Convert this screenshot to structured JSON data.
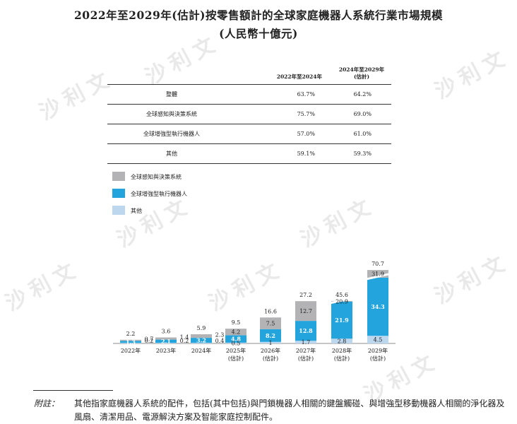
{
  "title_line1": "2022年至2029年(估計)按零售額計的全球家庭機器人系統行業市場規模",
  "title_line2": "(人民幣十億元)",
  "watermark": "沙利文",
  "cagr_table": {
    "headers": [
      "",
      "2022年至2024年",
      "2024年至2029年\n(估計)"
    ],
    "rows": [
      {
        "label": "整體",
        "v1": "63.7%",
        "v2": "64.2%"
      },
      {
        "label": "全球感知與決策系統",
        "v1": "75.7%",
        "v2": "69.0%"
      },
      {
        "label": "全球增強型執行機器人",
        "v1": "57.0%",
        "v2": "61.0%"
      },
      {
        "label": "其他",
        "v1": "59.1%",
        "v2": "59.3%"
      }
    ]
  },
  "chart_data": {
    "type": "bar",
    "stacked": true,
    "categories": [
      "2022年",
      "2023年",
      "2024年",
      "2025年\n(估計)",
      "2026年\n(估計)",
      "2027年\n(估計)",
      "2028年\n(估計)",
      "2029年\n(估計)"
    ],
    "series": [
      {
        "name": "其他",
        "color": "#bdd7ee",
        "values": [
          0.2,
          0.2,
          0.4,
          0.5,
          1.0,
          1.7,
          2.8,
          4.5
        ]
      },
      {
        "name": "全球增強型執行機器人",
        "color": "#23a4dc",
        "values": [
          1.3,
          2.1,
          3.2,
          4.8,
          8.2,
          12.8,
          21.9,
          34.3
        ]
      },
      {
        "name": "全球感知與決策系統",
        "color": "#b3b3b5",
        "values": [
          0.7,
          1.4,
          2.3,
          4.2,
          7.5,
          12.7,
          20.9,
          31.9
        ]
      }
    ],
    "totals": [
      2.2,
      3.6,
      5.9,
      9.5,
      16.6,
      27.2,
      45.6,
      70.7
    ],
    "legend": [
      "全球感知與決策系統",
      "全球增強型執行機器人",
      "其他"
    ],
    "legend_position": "top-left",
    "axis_break_after": "2027年\n(估計)"
  },
  "note": {
    "label": "附註：",
    "text": "其他指家庭機器人系統的配件，包括(其中包括)與門鎖機器人相關的鍵盤觸碰、與增強型移動機器人相關的淨化器及風扇、清潔用品、電源解決方案及智能家庭控制配件。"
  }
}
